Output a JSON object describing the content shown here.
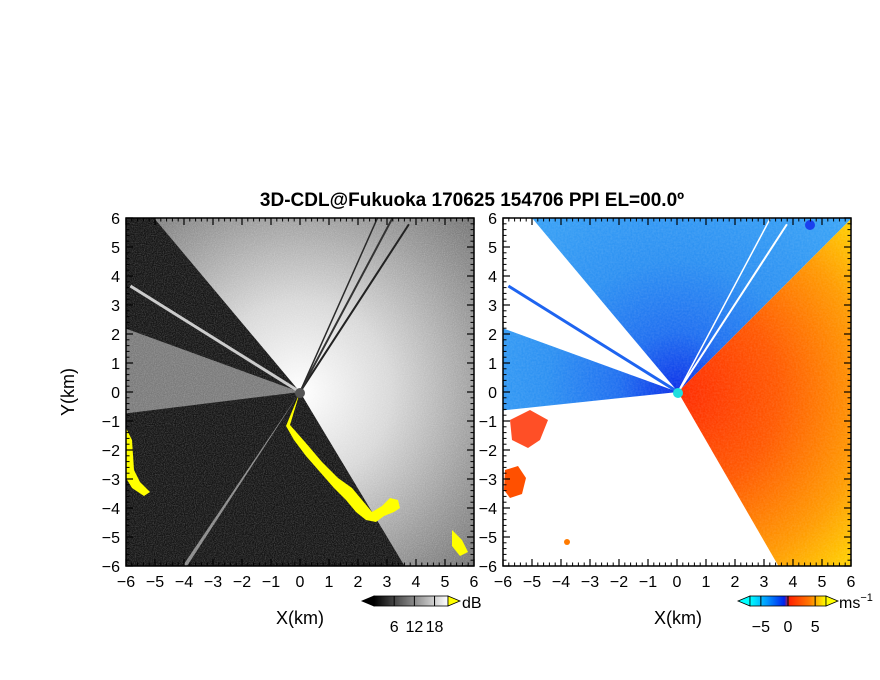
{
  "title": "3D-CDL@Fukuoka 170625 154706 PPI EL=00.0º",
  "chart_data": [
    {
      "type": "heatmap",
      "panel": "left",
      "quantity": "reflectivity",
      "xlabel": "X(km)",
      "ylabel": "Y(km)",
      "xlim": [
        -6,
        6
      ],
      "ylim": [
        -6,
        6
      ],
      "xticks": [
        "−6",
        "−5",
        "−4",
        "−3",
        "−2",
        "−1",
        "0",
        "1",
        "2",
        "3",
        "4",
        "5",
        "6"
      ],
      "yticks": [
        "6",
        "5",
        "4",
        "3",
        "2",
        "1",
        "0",
        "−1",
        "−2",
        "−3",
        "−4",
        "−5",
        "−6"
      ],
      "grid": false,
      "colorbar": {
        "label": "dB",
        "ticks": [
          "6",
          "12",
          "18"
        ],
        "tick_values": [
          6,
          12,
          18
        ],
        "range": [
          0,
          22
        ],
        "colors": [
          "#000000",
          "#ffffff"
        ],
        "over_color": "#ffff00"
      },
      "sector_description": {
        "blocked_sectors_deg": [
          [
            130,
            160
          ],
          [
            187,
            236
          ],
          [
            237,
            301
          ]
        ],
        "beam_lines_deg": [
          148,
          57,
          62,
          66
        ]
      }
    },
    {
      "type": "heatmap",
      "panel": "right",
      "quantity": "radial velocity",
      "xlabel": "X(km)",
      "xlim": [
        -6,
        6
      ],
      "ylim": [
        -6,
        6
      ],
      "xticks": [
        "−6",
        "−5",
        "−4",
        "−3",
        "−2",
        "−1",
        "0",
        "1",
        "2",
        "3",
        "4",
        "5",
        "6"
      ],
      "yticks": [
        "6",
        "5",
        "4",
        "3",
        "2",
        "1",
        "0",
        "−1",
        "−2",
        "−3",
        "−4",
        "−5",
        "−6"
      ],
      "grid": false,
      "colorbar": {
        "label": "ms",
        "label_superscript": "−1",
        "ticks": [
          "−5",
          "0",
          "5"
        ],
        "tick_values": [
          -5,
          0,
          5
        ],
        "range": [
          -7,
          7
        ],
        "colors": [
          "#00ffff",
          "#0099ff",
          "#0022ee",
          "#ff2200",
          "#ff7700",
          "#ffff00"
        ]
      },
      "sector_description": {
        "approaching_color": "#1e82f0",
        "receding_color": "#ff5a00"
      }
    }
  ]
}
